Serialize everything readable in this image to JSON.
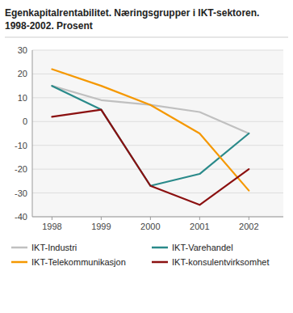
{
  "chart_data": {
    "type": "line",
    "title": "Egenkapitalrentabilitet. Næringsgrupper i IKT-sektoren.",
    "subtitle": "1998-2002. Prosent",
    "x": [
      1998,
      1999,
      2000,
      2001,
      2002
    ],
    "series": [
      {
        "name": "IKT-Industri",
        "color": "#c0c0c0",
        "values": [
          15,
          9,
          7,
          4,
          -5
        ]
      },
      {
        "name": "IKT-Varehandel",
        "color": "#2a8a8a",
        "values": [
          15,
          5,
          -27,
          -22,
          -5
        ]
      },
      {
        "name": "IKT-Telekommunikasjon",
        "color": "#f59800",
        "values": [
          22,
          15,
          7,
          -5,
          -29
        ]
      },
      {
        "name": "IKT-konsulentvirksomhet",
        "color": "#8b1010",
        "values": [
          2,
          5,
          -27,
          -35,
          -20
        ]
      }
    ],
    "xlim": [
      1997.6,
      2002.7
    ],
    "xticks": [
      1998,
      1999,
      2000,
      2001,
      2002
    ],
    "ylim": [
      -40,
      30
    ],
    "yticks": [
      -40,
      -30,
      -20,
      -10,
      0,
      10,
      20,
      30
    ],
    "grid": true,
    "legend": "bottom"
  }
}
